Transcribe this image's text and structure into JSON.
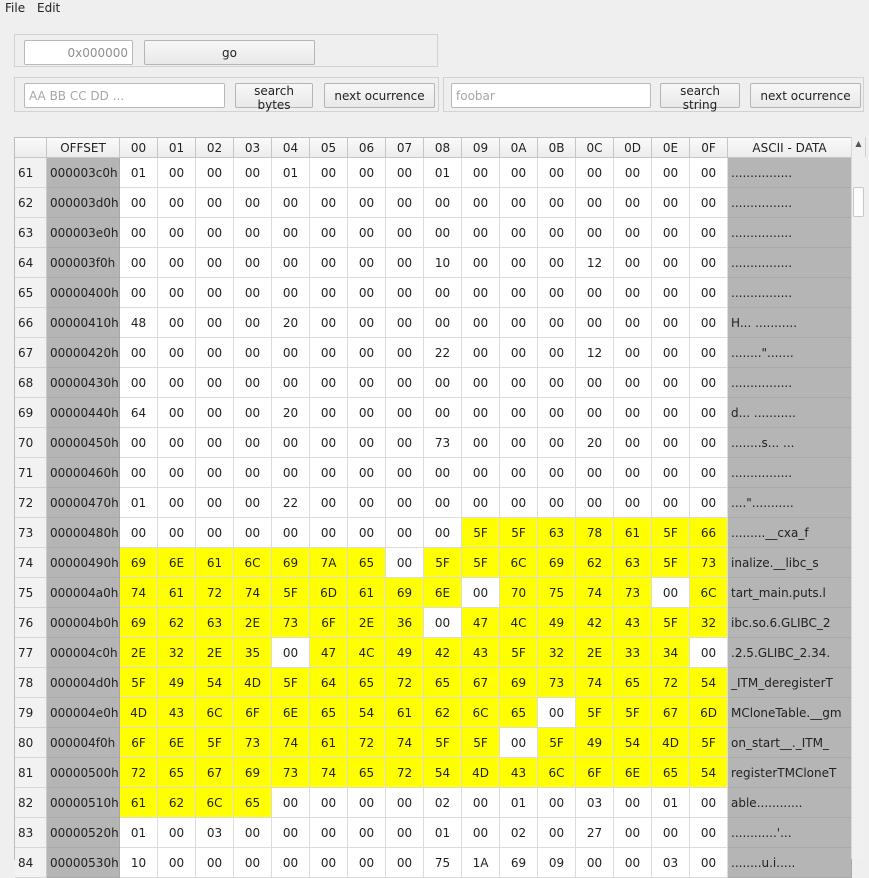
{
  "menu": {
    "file": "File",
    "edit": "Edit"
  },
  "goto": {
    "placeholder": "0x000000",
    "value": "",
    "button": "go"
  },
  "search_bytes": {
    "placeholder": "AA BB CC DD ...",
    "button": "search bytes",
    "next": "next ocurrence"
  },
  "search_string": {
    "placeholder": "foobar",
    "button": "search string",
    "next": "next ocurrence"
  },
  "highlight_color": "#ffff00",
  "table": {
    "headers": [
      "OFFSET",
      "00",
      "01",
      "02",
      "03",
      "04",
      "05",
      "06",
      "07",
      "08",
      "09",
      "0A",
      "0B",
      "0C",
      "0D",
      "0E",
      "0F",
      "ASCII - DATA"
    ],
    "rows": [
      {
        "n": "61",
        "off": "000003c0h",
        "bytes": [
          "01",
          "00",
          "00",
          "00",
          "01",
          "00",
          "00",
          "00",
          "01",
          "00",
          "00",
          "00",
          "00",
          "00",
          "00",
          "00"
        ],
        "hl": [],
        "ascii": "................"
      },
      {
        "n": "62",
        "off": "000003d0h",
        "bytes": [
          "00",
          "00",
          "00",
          "00",
          "00",
          "00",
          "00",
          "00",
          "00",
          "00",
          "00",
          "00",
          "00",
          "00",
          "00",
          "00"
        ],
        "hl": [],
        "ascii": "................"
      },
      {
        "n": "63",
        "off": "000003e0h",
        "bytes": [
          "00",
          "00",
          "00",
          "00",
          "00",
          "00",
          "00",
          "00",
          "00",
          "00",
          "00",
          "00",
          "00",
          "00",
          "00",
          "00"
        ],
        "hl": [],
        "ascii": "................"
      },
      {
        "n": "64",
        "off": "000003f0h",
        "bytes": [
          "00",
          "00",
          "00",
          "00",
          "00",
          "00",
          "00",
          "00",
          "10",
          "00",
          "00",
          "00",
          "12",
          "00",
          "00",
          "00"
        ],
        "hl": [],
        "ascii": "................"
      },
      {
        "n": "65",
        "off": "00000400h",
        "bytes": [
          "00",
          "00",
          "00",
          "00",
          "00",
          "00",
          "00",
          "00",
          "00",
          "00",
          "00",
          "00",
          "00",
          "00",
          "00",
          "00"
        ],
        "hl": [],
        "ascii": "................"
      },
      {
        "n": "66",
        "off": "00000410h",
        "bytes": [
          "48",
          "00",
          "00",
          "00",
          "20",
          "00",
          "00",
          "00",
          "00",
          "00",
          "00",
          "00",
          "00",
          "00",
          "00",
          "00"
        ],
        "hl": [],
        "ascii": "H... ..........."
      },
      {
        "n": "67",
        "off": "00000420h",
        "bytes": [
          "00",
          "00",
          "00",
          "00",
          "00",
          "00",
          "00",
          "00",
          "22",
          "00",
          "00",
          "00",
          "12",
          "00",
          "00",
          "00"
        ],
        "hl": [],
        "ascii": "........\"......."
      },
      {
        "n": "68",
        "off": "00000430h",
        "bytes": [
          "00",
          "00",
          "00",
          "00",
          "00",
          "00",
          "00",
          "00",
          "00",
          "00",
          "00",
          "00",
          "00",
          "00",
          "00",
          "00"
        ],
        "hl": [],
        "ascii": "................"
      },
      {
        "n": "69",
        "off": "00000440h",
        "bytes": [
          "64",
          "00",
          "00",
          "00",
          "20",
          "00",
          "00",
          "00",
          "00",
          "00",
          "00",
          "00",
          "00",
          "00",
          "00",
          "00"
        ],
        "hl": [],
        "ascii": "d... ..........."
      },
      {
        "n": "70",
        "off": "00000450h",
        "bytes": [
          "00",
          "00",
          "00",
          "00",
          "00",
          "00",
          "00",
          "00",
          "73",
          "00",
          "00",
          "00",
          "20",
          "00",
          "00",
          "00"
        ],
        "hl": [],
        "ascii": "........s... ..."
      },
      {
        "n": "71",
        "off": "00000460h",
        "bytes": [
          "00",
          "00",
          "00",
          "00",
          "00",
          "00",
          "00",
          "00",
          "00",
          "00",
          "00",
          "00",
          "00",
          "00",
          "00",
          "00"
        ],
        "hl": [],
        "ascii": "................"
      },
      {
        "n": "72",
        "off": "00000470h",
        "bytes": [
          "01",
          "00",
          "00",
          "00",
          "22",
          "00",
          "00",
          "00",
          "00",
          "00",
          "00",
          "00",
          "00",
          "00",
          "00",
          "00"
        ],
        "hl": [],
        "ascii": "....\"..........."
      },
      {
        "n": "73",
        "off": "00000480h",
        "bytes": [
          "00",
          "00",
          "00",
          "00",
          "00",
          "00",
          "00",
          "00",
          "00",
          "5F",
          "5F",
          "63",
          "78",
          "61",
          "5F",
          "66"
        ],
        "hl": [
          9,
          10,
          11,
          12,
          13,
          14,
          15
        ],
        "ascii": ".........__cxa_f"
      },
      {
        "n": "74",
        "off": "00000490h",
        "bytes": [
          "69",
          "6E",
          "61",
          "6C",
          "69",
          "7A",
          "65",
          "00",
          "5F",
          "5F",
          "6C",
          "69",
          "62",
          "63",
          "5F",
          "73"
        ],
        "hl": [
          0,
          1,
          2,
          3,
          4,
          5,
          6,
          8,
          9,
          10,
          11,
          12,
          13,
          14,
          15
        ],
        "ascii": "inalize.__libc_s"
      },
      {
        "n": "75",
        "off": "000004a0h",
        "bytes": [
          "74",
          "61",
          "72",
          "74",
          "5F",
          "6D",
          "61",
          "69",
          "6E",
          "00",
          "70",
          "75",
          "74",
          "73",
          "00",
          "6C"
        ],
        "hl": [
          0,
          1,
          2,
          3,
          4,
          5,
          6,
          7,
          8,
          10,
          11,
          12,
          13,
          15
        ],
        "ascii": "tart_main.puts.l"
      },
      {
        "n": "76",
        "off": "000004b0h",
        "bytes": [
          "69",
          "62",
          "63",
          "2E",
          "73",
          "6F",
          "2E",
          "36",
          "00",
          "47",
          "4C",
          "49",
          "42",
          "43",
          "5F",
          "32"
        ],
        "hl": [
          0,
          1,
          2,
          3,
          4,
          5,
          6,
          7,
          9,
          10,
          11,
          12,
          13,
          14,
          15
        ],
        "ascii": "ibc.so.6.GLIBC_2"
      },
      {
        "n": "77",
        "off": "000004c0h",
        "bytes": [
          "2E",
          "32",
          "2E",
          "35",
          "00",
          "47",
          "4C",
          "49",
          "42",
          "43",
          "5F",
          "32",
          "2E",
          "33",
          "34",
          "00"
        ],
        "hl": [
          0,
          1,
          2,
          3,
          5,
          6,
          7,
          8,
          9,
          10,
          11,
          12,
          13,
          14
        ],
        "ascii": ".2.5.GLIBC_2.34."
      },
      {
        "n": "78",
        "off": "000004d0h",
        "bytes": [
          "5F",
          "49",
          "54",
          "4D",
          "5F",
          "64",
          "65",
          "72",
          "65",
          "67",
          "69",
          "73",
          "74",
          "65",
          "72",
          "54"
        ],
        "hl": [
          0,
          1,
          2,
          3,
          4,
          5,
          6,
          7,
          8,
          9,
          10,
          11,
          12,
          13,
          14,
          15
        ],
        "ascii": "_ITM_deregisterT"
      },
      {
        "n": "79",
        "off": "000004e0h",
        "bytes": [
          "4D",
          "43",
          "6C",
          "6F",
          "6E",
          "65",
          "54",
          "61",
          "62",
          "6C",
          "65",
          "00",
          "5F",
          "5F",
          "67",
          "6D"
        ],
        "hl": [
          0,
          1,
          2,
          3,
          4,
          5,
          6,
          7,
          8,
          9,
          10,
          12,
          13,
          14,
          15
        ],
        "ascii": "MCloneTable.__gm"
      },
      {
        "n": "80",
        "off": "000004f0h",
        "bytes": [
          "6F",
          "6E",
          "5F",
          "73",
          "74",
          "61",
          "72",
          "74",
          "5F",
          "5F",
          "00",
          "5F",
          "49",
          "54",
          "4D",
          "5F"
        ],
        "hl": [
          0,
          1,
          2,
          3,
          4,
          5,
          6,
          7,
          8,
          9,
          11,
          12,
          13,
          14,
          15
        ],
        "ascii": "on_start__._ITM_"
      },
      {
        "n": "81",
        "off": "00000500h",
        "bytes": [
          "72",
          "65",
          "67",
          "69",
          "73",
          "74",
          "65",
          "72",
          "54",
          "4D",
          "43",
          "6C",
          "6F",
          "6E",
          "65",
          "54"
        ],
        "hl": [
          0,
          1,
          2,
          3,
          4,
          5,
          6,
          7,
          8,
          9,
          10,
          11,
          12,
          13,
          14,
          15
        ],
        "ascii": "registerTMCloneT"
      },
      {
        "n": "82",
        "off": "00000510h",
        "bytes": [
          "61",
          "62",
          "6C",
          "65",
          "00",
          "00",
          "00",
          "00",
          "02",
          "00",
          "01",
          "00",
          "03",
          "00",
          "01",
          "00"
        ],
        "hl": [
          0,
          1,
          2,
          3
        ],
        "ascii": "able............"
      },
      {
        "n": "83",
        "off": "00000520h",
        "bytes": [
          "01",
          "00",
          "03",
          "00",
          "00",
          "00",
          "00",
          "00",
          "01",
          "00",
          "02",
          "00",
          "27",
          "00",
          "00",
          "00"
        ],
        "hl": [],
        "ascii": "............'..."
      },
      {
        "n": "84",
        "off": "00000530h",
        "bytes": [
          "10",
          "00",
          "00",
          "00",
          "00",
          "00",
          "00",
          "00",
          "75",
          "1A",
          "69",
          "09",
          "00",
          "00",
          "03",
          "00"
        ],
        "hl": [],
        "ascii": "........u.i....."
      }
    ]
  }
}
